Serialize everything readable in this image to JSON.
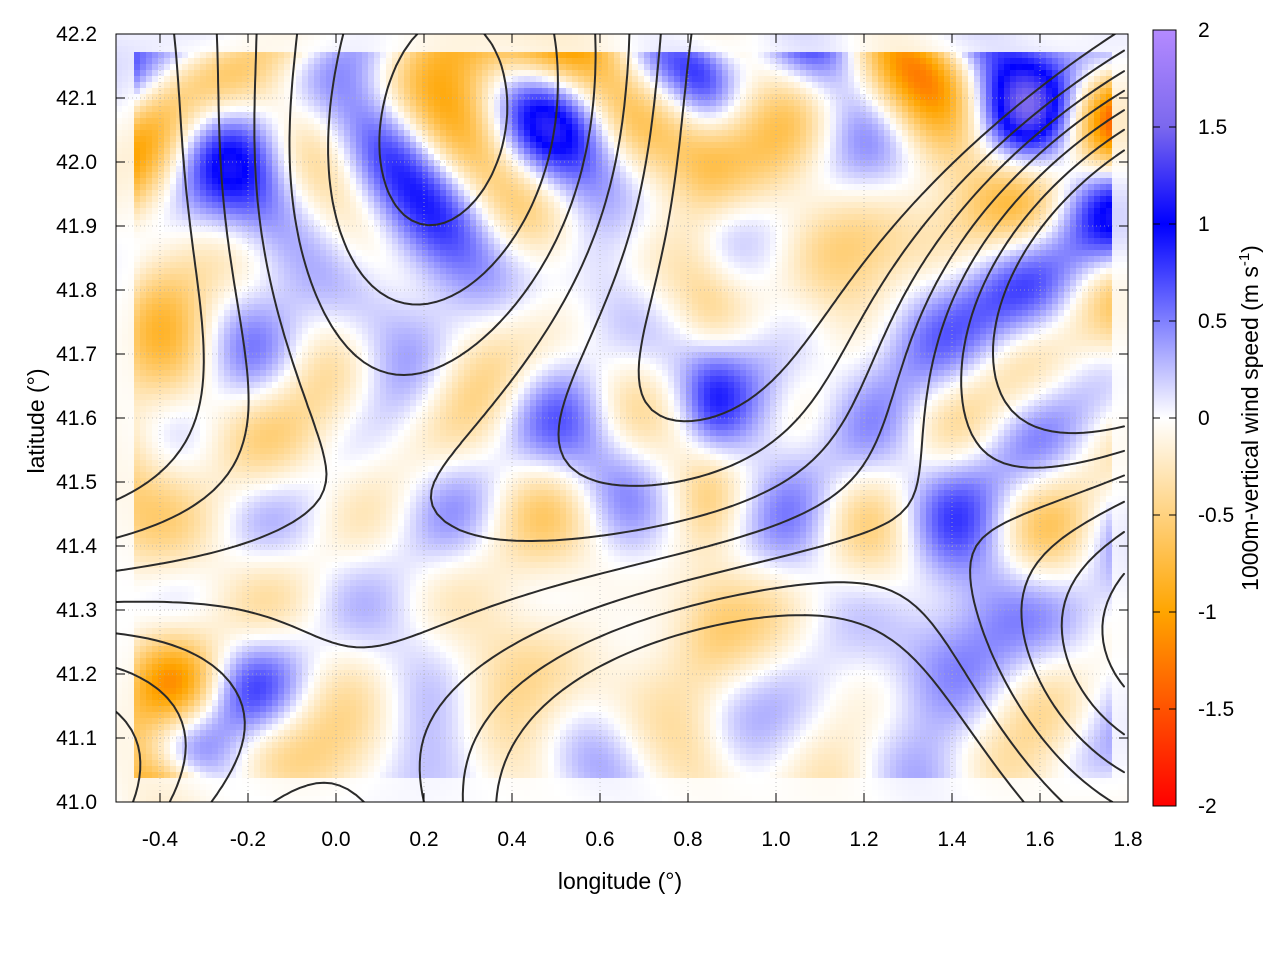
{
  "chart_data": {
    "type": "heatmap",
    "title": "",
    "xlabel": "longitude (°)",
    "ylabel": "latitude (°)",
    "colorbar_label": "1000m-vertical wind speed (m s",
    "colorbar_label_sup": "-1",
    "colorbar_label_close": ")",
    "xlim": [
      -0.5,
      1.8
    ],
    "ylim": [
      41.0,
      42.2
    ],
    "zlim": [
      -2,
      2
    ],
    "xticks": [
      -0.4,
      -0.2,
      0.0,
      0.2,
      0.4,
      0.6,
      0.8,
      1.0,
      1.2,
      1.4,
      1.6,
      1.8
    ],
    "xtick_labels": [
      "-0.4",
      "-0.2",
      "0.0",
      "0.2",
      "0.4",
      "0.6",
      "0.8",
      "1.0",
      "1.2",
      "1.4",
      "1.6",
      "1.8"
    ],
    "yticks": [
      41.0,
      41.1,
      41.2,
      41.3,
      41.4,
      41.5,
      41.6,
      41.7,
      41.8,
      41.9,
      42.0,
      42.1,
      42.2
    ],
    "ytick_labels": [
      "41.0",
      "41.1",
      "41.2",
      "41.3",
      "41.4",
      "41.5",
      "41.6",
      "41.7",
      "41.8",
      "41.9",
      "42.0",
      "42.1",
      "42.2"
    ],
    "cbticks": [
      2,
      1.5,
      1,
      0.5,
      0,
      -0.5,
      -1,
      -1.5,
      -2
    ],
    "cbtick_labels": [
      "2",
      "1.5",
      "1",
      "0.5",
      "0",
      "-0.5",
      "-1",
      "-1.5",
      "-2"
    ],
    "colormap": [
      {
        "value": -2.0,
        "color": "#ff0000"
      },
      {
        "value": -1.0,
        "color": "#ffa500"
      },
      {
        "value": 0.0,
        "color": "#ffffff"
      },
      {
        "value": 1.0,
        "color": "#0000ff"
      },
      {
        "value": 1.5,
        "color": "#7b68ee"
      },
      {
        "value": 2.0,
        "color": "#b48aff"
      }
    ],
    "grid": true,
    "contours": "terrain elevation isolines (dark grey)"
  }
}
